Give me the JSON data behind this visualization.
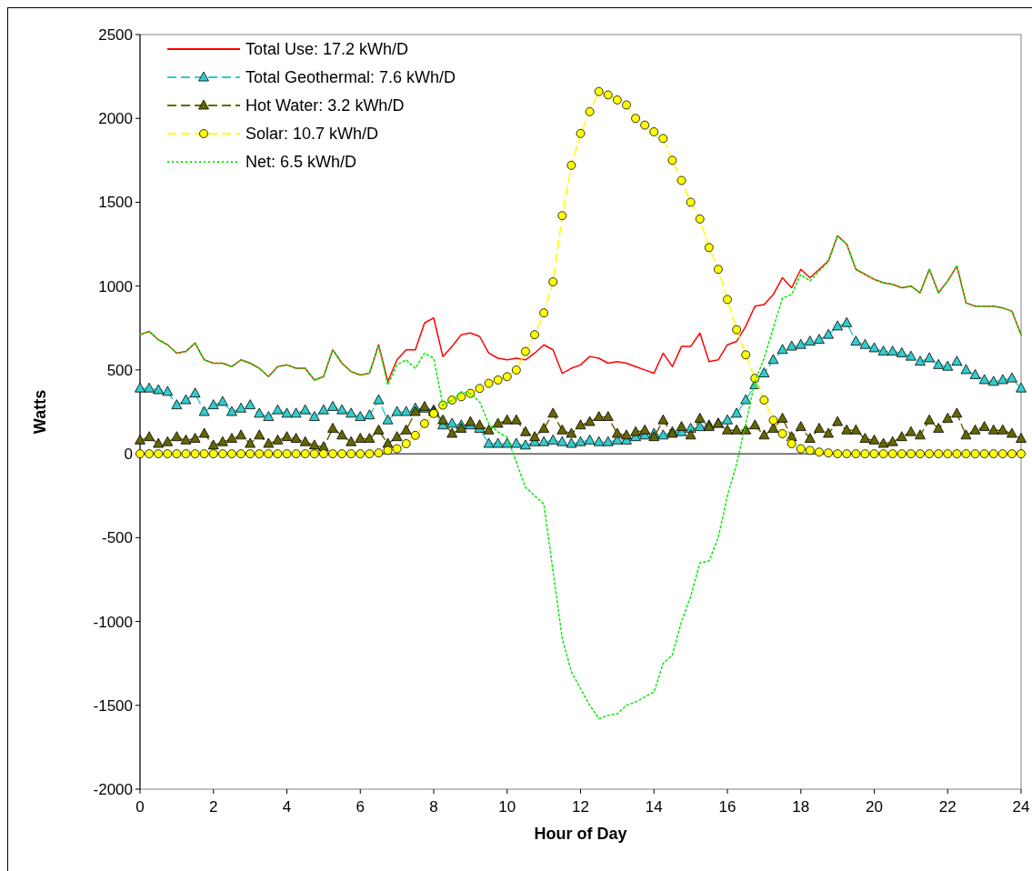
{
  "chart_data": {
    "type": "line",
    "xlabel": "Hour of Day",
    "ylabel": "Watts",
    "x": [
      0,
      0.25,
      0.5,
      0.75,
      1,
      1.25,
      1.5,
      1.75,
      2,
      2.25,
      2.5,
      2.75,
      3,
      3.25,
      3.5,
      3.75,
      4,
      4.25,
      4.5,
      4.75,
      5,
      5.25,
      5.5,
      5.75,
      6,
      6.25,
      6.5,
      6.75,
      7,
      7.25,
      7.5,
      7.75,
      8,
      8.25,
      8.5,
      8.75,
      9,
      9.25,
      9.5,
      9.75,
      10,
      10.25,
      10.5,
      10.75,
      11,
      11.25,
      11.5,
      11.75,
      12,
      12.25,
      12.5,
      12.75,
      13,
      13.25,
      13.5,
      13.75,
      14,
      14.25,
      14.5,
      14.75,
      15,
      15.25,
      15.5,
      15.75,
      16,
      16.25,
      16.5,
      16.75,
      17,
      17.25,
      17.5,
      17.75,
      18,
      18.25,
      18.5,
      18.75,
      19,
      19.25,
      19.5,
      19.75,
      20,
      20.25,
      20.5,
      20.75,
      21,
      21.25,
      21.5,
      21.75,
      22,
      22.25,
      22.5,
      22.75,
      23,
      23.25,
      23.5,
      23.75,
      24
    ],
    "series": [
      {
        "name": "Total Use: 17.2 kWh/D",
        "color": "#ff0000",
        "marker": "none",
        "line_style": "solid",
        "values": [
          710,
          730,
          680,
          650,
          600,
          610,
          660,
          560,
          540,
          540,
          520,
          560,
          540,
          510,
          460,
          520,
          530,
          510,
          510,
          440,
          460,
          620,
          540,
          490,
          470,
          480,
          650,
          430,
          560,
          620,
          620,
          780,
          810,
          580,
          640,
          710,
          720,
          700,
          600,
          570,
          560,
          570,
          560,
          600,
          650,
          620,
          480,
          510,
          530,
          580,
          570,
          540,
          550,
          540,
          520,
          500,
          480,
          600,
          520,
          640,
          640,
          720,
          550,
          560,
          650,
          670,
          760,
          880,
          890,
          950,
          1050,
          990,
          1100,
          1050,
          1100,
          1150,
          1300,
          1250,
          1100,
          1070,
          1040,
          1020,
          1010,
          990,
          1000,
          960,
          1100,
          960,
          1030,
          1120,
          900,
          880,
          880,
          880,
          870,
          850,
          710
        ]
      },
      {
        "name": "Total Geothermal: 7.6 kWh/D",
        "color": "#33cccc",
        "marker": "triangle",
        "line_style": "dashed",
        "values": [
          390,
          390,
          380,
          370,
          290,
          320,
          360,
          250,
          290,
          310,
          250,
          270,
          290,
          240,
          220,
          260,
          240,
          240,
          260,
          220,
          260,
          280,
          260,
          240,
          220,
          230,
          320,
          200,
          250,
          250,
          270,
          270,
          260,
          170,
          180,
          170,
          170,
          150,
          60,
          60,
          60,
          60,
          50,
          70,
          70,
          80,
          70,
          60,
          70,
          80,
          70,
          70,
          80,
          80,
          100,
          110,
          120,
          110,
          130,
          130,
          150,
          160,
          170,
          180,
          200,
          240,
          320,
          410,
          480,
          560,
          620,
          640,
          650,
          670,
          680,
          710,
          760,
          780,
          670,
          650,
          630,
          610,
          610,
          600,
          580,
          550,
          570,
          530,
          520,
          550,
          500,
          470,
          440,
          430,
          440,
          450,
          390
        ]
      },
      {
        "name": "Hot Water: 3.2 kWh/D",
        "color": "#666600",
        "marker": "triangle",
        "line_style": "dashed",
        "values": [
          80,
          100,
          60,
          70,
          100,
          80,
          90,
          120,
          50,
          70,
          90,
          110,
          60,
          110,
          60,
          80,
          100,
          90,
          70,
          50,
          40,
          150,
          110,
          70,
          90,
          90,
          140,
          60,
          100,
          140,
          250,
          280,
          250,
          200,
          120,
          150,
          190,
          170,
          140,
          180,
          200,
          200,
          130,
          100,
          150,
          240,
          140,
          120,
          170,
          190,
          220,
          220,
          120,
          110,
          130,
          140,
          100,
          200,
          120,
          160,
          110,
          210,
          160,
          180,
          140,
          140,
          140,
          170,
          110,
          150,
          210,
          100,
          160,
          90,
          150,
          120,
          190,
          140,
          140,
          90,
          80,
          60,
          70,
          100,
          130,
          110,
          200,
          150,
          210,
          240,
          110,
          140,
          160,
          140,
          140,
          120,
          90
        ]
      },
      {
        "name": "Solar: 10.7 kWh/D",
        "color": "#ffff00",
        "marker": "circle",
        "line_style": "dashed",
        "values": [
          0,
          0,
          0,
          0,
          0,
          0,
          0,
          0,
          0,
          0,
          0,
          0,
          0,
          0,
          0,
          0,
          0,
          0,
          0,
          0,
          0,
          0,
          0,
          0,
          0,
          0,
          5,
          20,
          30,
          60,
          110,
          180,
          240,
          290,
          320,
          340,
          360,
          390,
          420,
          440,
          460,
          500,
          610,
          710,
          840,
          1025,
          1420,
          1720,
          1910,
          2040,
          2160,
          2140,
          2110,
          2080,
          2000,
          1960,
          1920,
          1880,
          1750,
          1630,
          1500,
          1400,
          1230,
          1100,
          920,
          740,
          590,
          450,
          320,
          200,
          120,
          60,
          30,
          20,
          10,
          5,
          0,
          0,
          0,
          0,
          0,
          0,
          0,
          0,
          0,
          0,
          0,
          0,
          0,
          0,
          0,
          0,
          0,
          0,
          0,
          0,
          0
        ]
      },
      {
        "name": "Net: 6.5 kWh/D",
        "color": "#00ee00",
        "marker": "none",
        "line_style": "dotted",
        "values": [
          710,
          730,
          680,
          650,
          600,
          610,
          660,
          560,
          540,
          540,
          520,
          560,
          540,
          510,
          460,
          520,
          530,
          510,
          510,
          440,
          460,
          620,
          540,
          490,
          470,
          480,
          645,
          410,
          530,
          560,
          510,
          600,
          570,
          290,
          320,
          370,
          360,
          310,
          180,
          130,
          100,
          -50,
          -200,
          -250,
          -300,
          -700,
          -1100,
          -1300,
          -1400,
          -1500,
          -1580,
          -1560,
          -1550,
          -1500,
          -1480,
          -1450,
          -1420,
          -1250,
          -1200,
          -1000,
          -850,
          -650,
          -640,
          -500,
          -250,
          -60,
          180,
          430,
          570,
          750,
          930,
          950,
          1070,
          1030,
          1090,
          1145,
          1300,
          1250,
          1100,
          1070,
          1040,
          1020,
          1010,
          990,
          1000,
          960,
          1100,
          960,
          1030,
          1120,
          900,
          880,
          880,
          880,
          870,
          850,
          710
        ]
      }
    ],
    "xlim": [
      0,
      24
    ],
    "xticks": [
      0,
      2,
      4,
      6,
      8,
      10,
      12,
      14,
      16,
      18,
      20,
      22,
      24
    ],
    "ylim": [
      -2000,
      2500
    ],
    "yticks": [
      -2000,
      -1500,
      -1000,
      -500,
      0,
      500,
      1000,
      1500,
      2000,
      2500
    ],
    "ref_lines": [
      {
        "axis": "y",
        "value": 0,
        "color": "#000000"
      }
    ],
    "grid": false,
    "legend": "top left"
  }
}
